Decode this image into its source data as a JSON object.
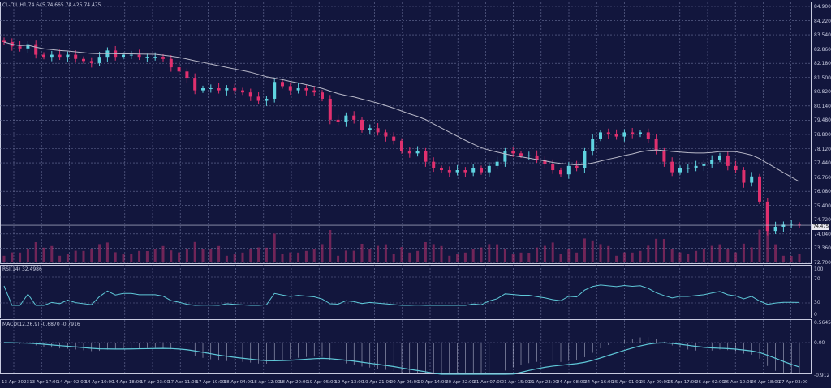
{
  "header": {
    "symbol": "CL-OIL,H1",
    "ohlc": "74.645 74.665 74.425 74.475"
  },
  "rsi": {
    "label": "RSI(14) 32.4986",
    "scale": [
      "100",
      "70",
      "30",
      "0"
    ]
  },
  "macd": {
    "label": "MACD(12,26,9) -0.6870 -0.7916",
    "scale": [
      "0.5645",
      "0.00",
      "-0.912"
    ]
  },
  "price_axis": [
    "84.900",
    "84.220",
    "83.540",
    "82.860",
    "82.180",
    "81.500",
    "80.820",
    "80.140",
    "79.480",
    "78.800",
    "78.120",
    "77.440",
    "76.760",
    "76.080",
    "75.400",
    "74.720",
    "74.040",
    "73.360",
    "72.700"
  ],
  "current_price": "74.475",
  "time_axis": [
    "13 Apr 2023",
    "13 Apr 17:00",
    "14 Apr 02:00",
    "14 Apr 10:00",
    "14 Apr 18:00",
    "17 Apr 03:00",
    "17 Apr 11:00",
    "17 Apr 19:00",
    "18 Apr 04:00",
    "18 Apr 12:00",
    "18 Apr 20:00",
    "19 Apr 05:00",
    "19 Apr 13:00",
    "19 Apr 21:00",
    "20 Apr 06:00",
    "20 Apr 14:00",
    "20 Apr 22:00",
    "21 Apr 07:00",
    "21 Apr 15:00",
    "21 Apr 23:00",
    "24 Apr 08:00",
    "24 Apr 16:00",
    "25 Apr 01:00",
    "25 Apr 09:00",
    "25 Apr 17:00",
    "26 Apr 02:00",
    "26 Apr 10:00",
    "26 Apr 18:00",
    "27 Apr 03:00"
  ],
  "colors": {
    "background": "#12163d",
    "bull": "#5fd3e0",
    "bear": "#e0306e",
    "ma": "#b8b8c8",
    "indicator": "#5fc8d8",
    "grid": "#6a7099"
  },
  "chart_data": {
    "type": "candlestick",
    "ylim": [
      72.7,
      84.9
    ],
    "closes": [
      83.2,
      83.0,
      82.9,
      83.1,
      82.6,
      82.5,
      82.6,
      82.5,
      82.6,
      82.4,
      82.3,
      82.2,
      82.5,
      82.8,
      82.5,
      82.6,
      82.6,
      82.5,
      82.5,
      82.5,
      82.4,
      82.0,
      81.8,
      81.5,
      80.9,
      81.0,
      81.0,
      80.9,
      81.0,
      80.9,
      80.8,
      80.6,
      80.4,
      80.5,
      81.3,
      81.1,
      80.9,
      81.0,
      80.9,
      80.8,
      80.5,
      79.5,
      79.4,
      79.7,
      79.5,
      79.0,
      79.1,
      78.9,
      78.7,
      78.5,
      78.0,
      77.9,
      78.0,
      77.5,
      77.2,
      77.1,
      77.0,
      77.1,
      77.0,
      77.2,
      77.0,
      77.3,
      77.5,
      78.0,
      77.9,
      77.8,
      77.8,
      77.6,
      77.4,
      77.1,
      76.9,
      77.3,
      77.2,
      78.0,
      78.6,
      78.9,
      78.8,
      78.7,
      78.9,
      78.8,
      78.9,
      78.6,
      78.0,
      77.5,
      77.0,
      77.2,
      77.2,
      77.3,
      77.4,
      77.6,
      77.8,
      77.3,
      77.1,
      76.5,
      76.8,
      75.6,
      74.2,
      74.4,
      74.5,
      74.5,
      74.475
    ],
    "moving_average_period": 20,
    "indicators": [
      "RSI(14)",
      "MACD(12,26,9)"
    ]
  }
}
